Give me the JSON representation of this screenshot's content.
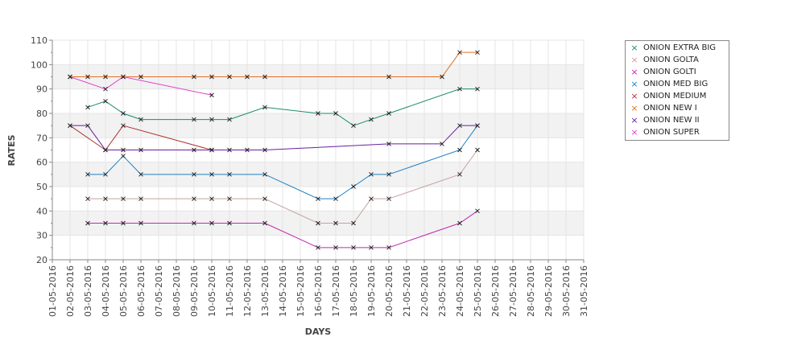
{
  "chart_data": {
    "type": "line",
    "xlabel": "DAYS",
    "ylabel": "RATES",
    "ylim": [
      20,
      110
    ],
    "yticks": [
      20,
      30,
      40,
      50,
      60,
      70,
      80,
      90,
      100,
      110
    ],
    "grid": true,
    "legend_position": "right",
    "categories": [
      "01-05-2016",
      "02-05-2016",
      "03-05-2016",
      "04-05-2016",
      "05-05-2016",
      "06-05-2016",
      "07-05-2016",
      "08-05-2016",
      "09-05-2016",
      "10-05-2016",
      "11-05-2016",
      "12-05-2016",
      "13-05-2016",
      "14-05-2016",
      "15-05-2016",
      "16-05-2016",
      "17-05-2016",
      "18-05-2016",
      "19-05-2016",
      "20-05-2016",
      "21-05-2016",
      "22-05-2016",
      "23-05-2016",
      "24-05-2016",
      "25-05-2016",
      "26-05-2016",
      "27-05-2016",
      "28-05-2016",
      "29-05-2016",
      "30-05-2016",
      "31-05-2016"
    ],
    "series": [
      {
        "name": "ONION EXTRA BIG",
        "color": "#1a8a6e",
        "points": [
          [
            2,
            82.5
          ],
          [
            3,
            85
          ],
          [
            4,
            80
          ],
          [
            5,
            77.5
          ],
          [
            8,
            77.5
          ],
          [
            9,
            77.5
          ],
          [
            10,
            77.5
          ],
          [
            12,
            82.5
          ],
          [
            15,
            80
          ],
          [
            16,
            80
          ],
          [
            17,
            75
          ],
          [
            18,
            77.5
          ],
          [
            19,
            80
          ],
          [
            23,
            90
          ],
          [
            24,
            90
          ]
        ]
      },
      {
        "name": "ONION GOLTA",
        "color": "#c9a0a0",
        "points": [
          [
            2,
            45
          ],
          [
            3,
            45
          ],
          [
            4,
            45
          ],
          [
            5,
            45
          ],
          [
            8,
            45
          ],
          [
            9,
            45
          ],
          [
            10,
            45
          ],
          [
            12,
            45
          ],
          [
            15,
            35
          ],
          [
            16,
            35
          ],
          [
            17,
            35
          ],
          [
            18,
            45
          ],
          [
            19,
            45
          ],
          [
            23,
            55
          ],
          [
            24,
            65
          ]
        ]
      },
      {
        "name": "ONION GOLTI",
        "color": "#c02aa8",
        "points": [
          [
            2,
            35
          ],
          [
            3,
            35
          ],
          [
            4,
            35
          ],
          [
            5,
            35
          ],
          [
            8,
            35
          ],
          [
            9,
            35
          ],
          [
            10,
            35
          ],
          [
            12,
            35
          ],
          [
            15,
            25
          ],
          [
            16,
            25
          ],
          [
            17,
            25
          ],
          [
            18,
            25
          ],
          [
            19,
            25
          ],
          [
            23,
            35
          ],
          [
            24,
            40
          ]
        ]
      },
      {
        "name": "ONION MED BIG",
        "color": "#1f7fc0",
        "points": [
          [
            2,
            55
          ],
          [
            3,
            55
          ],
          [
            4,
            62.5
          ],
          [
            5,
            55
          ],
          [
            8,
            55
          ],
          [
            9,
            55
          ],
          [
            10,
            55
          ],
          [
            12,
            55
          ],
          [
            15,
            45
          ],
          [
            16,
            45
          ],
          [
            17,
            50
          ],
          [
            18,
            55
          ],
          [
            19,
            55
          ],
          [
            23,
            65
          ],
          [
            24,
            75
          ]
        ]
      },
      {
        "name": "ONION MEDIUM",
        "color": "#b03030",
        "points": [
          [
            1,
            75
          ],
          [
            3,
            65
          ],
          [
            4,
            75
          ],
          [
            9,
            65
          ]
        ]
      },
      {
        "name": "ONION NEW I",
        "color": "#e07020",
        "points": [
          [
            1,
            95
          ],
          [
            2,
            95
          ],
          [
            3,
            95
          ],
          [
            4,
            95
          ],
          [
            5,
            95
          ],
          [
            8,
            95
          ],
          [
            9,
            95
          ],
          [
            10,
            95
          ],
          [
            11,
            95
          ],
          [
            12,
            95
          ],
          [
            19,
            95
          ],
          [
            22,
            95
          ],
          [
            23,
            105
          ],
          [
            24,
            105
          ]
        ]
      },
      {
        "name": "ONION NEW II",
        "color": "#6a1fa0",
        "points": [
          [
            1,
            75
          ],
          [
            2,
            75
          ],
          [
            3,
            65
          ],
          [
            4,
            65
          ],
          [
            5,
            65
          ],
          [
            8,
            65
          ],
          [
            9,
            65
          ],
          [
            10,
            65
          ],
          [
            11,
            65
          ],
          [
            12,
            65
          ],
          [
            19,
            67.5
          ],
          [
            22,
            67.5
          ],
          [
            23,
            75
          ],
          [
            24,
            75
          ]
        ]
      },
      {
        "name": "ONION SUPER",
        "color": "#e040c8",
        "points": [
          [
            1,
            95
          ],
          [
            3,
            90
          ],
          [
            4,
            95
          ],
          [
            9,
            87.5
          ]
        ]
      }
    ]
  }
}
